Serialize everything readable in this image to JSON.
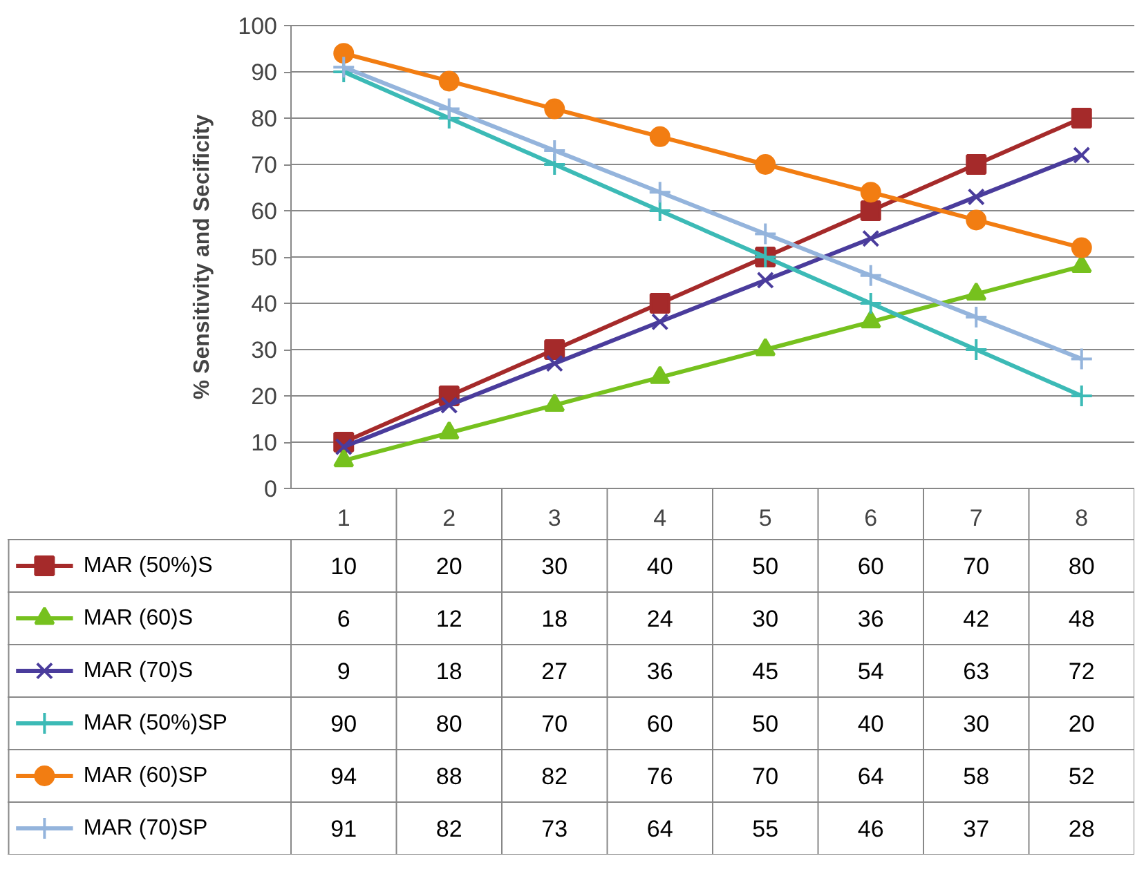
{
  "chart_data": {
    "type": "line",
    "ylabel": "% Sensitivity and Secificity",
    "categories": [
      "1",
      "2",
      "3",
      "4",
      "5",
      "6",
      "7",
      "8"
    ],
    "series": [
      {
        "name": "MAR (50%)S",
        "color": "#a52a2a",
        "marker": "square",
        "values": [
          10,
          20,
          30,
          40,
          50,
          60,
          70,
          80
        ]
      },
      {
        "name": "MAR (60)S",
        "color": "#76c11e",
        "marker": "triangle",
        "values": [
          6,
          12,
          18,
          24,
          30,
          36,
          42,
          48
        ]
      },
      {
        "name": "MAR (70)S",
        "color": "#4a3c9c",
        "marker": "x",
        "values": [
          9,
          18,
          27,
          36,
          45,
          54,
          63,
          72
        ]
      },
      {
        "name": "MAR (50%)SP",
        "color": "#3cbab6",
        "marker": "cross",
        "values": [
          90,
          80,
          70,
          60,
          50,
          40,
          30,
          20
        ]
      },
      {
        "name": "MAR (60)SP",
        "color": "#f27d12",
        "marker": "circle",
        "values": [
          94,
          88,
          82,
          76,
          70,
          64,
          58,
          52
        ]
      },
      {
        "name": "MAR (70)SP",
        "color": "#94b4dc",
        "marker": "cross",
        "values": [
          91,
          82,
          73,
          64,
          55,
          46,
          37,
          28
        ]
      }
    ],
    "ylim": [
      0,
      100
    ],
    "yticks": [
      0,
      10,
      20,
      30,
      40,
      50,
      60,
      70,
      80,
      90,
      100
    ],
    "grid": "y",
    "legend": "bottom",
    "data_labels": true,
    "line_style": "solid"
  }
}
